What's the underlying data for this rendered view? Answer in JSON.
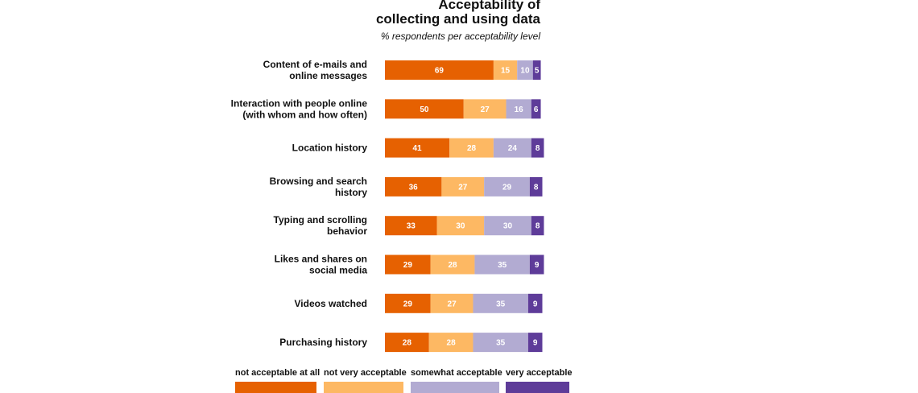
{
  "chart_data": {
    "type": "bar",
    "orientation": "horizontal",
    "stacked": true,
    "title": "Acceptability of collecting and using data",
    "title_lines": [
      "Acceptability of",
      "collecting and using data"
    ],
    "subtitle": "% respondents per acceptability level",
    "xlabel": "",
    "ylabel": "",
    "xlim": [
      0,
      100
    ],
    "grid": false,
    "legend_position": "bottom",
    "categories": [
      [
        "Content of e-mails and",
        "online messages"
      ],
      [
        "Interaction with people online",
        "(with whom and how often)"
      ],
      [
        "Location history"
      ],
      [
        "Browsing and search",
        "history"
      ],
      [
        "Typing and scrolling",
        "behavior"
      ],
      [
        "Likes and shares on",
        "social media"
      ],
      [
        "Videos watched"
      ],
      [
        "Purchasing history"
      ]
    ],
    "series": [
      {
        "name": "not acceptable at all",
        "color": "#e66101",
        "values": [
          69,
          50,
          41,
          36,
          33,
          29,
          29,
          28
        ]
      },
      {
        "name": "not very acceptable",
        "color": "#fdb863",
        "values": [
          15,
          27,
          28,
          27,
          30,
          28,
          27,
          28
        ]
      },
      {
        "name": "somewhat acceptable",
        "color": "#b2abd2",
        "values": [
          10,
          16,
          24,
          29,
          30,
          35,
          35,
          35
        ]
      },
      {
        "name": "very acceptable",
        "color": "#5e3c99",
        "values": [
          5,
          6,
          8,
          8,
          8,
          9,
          9,
          9
        ]
      }
    ]
  }
}
